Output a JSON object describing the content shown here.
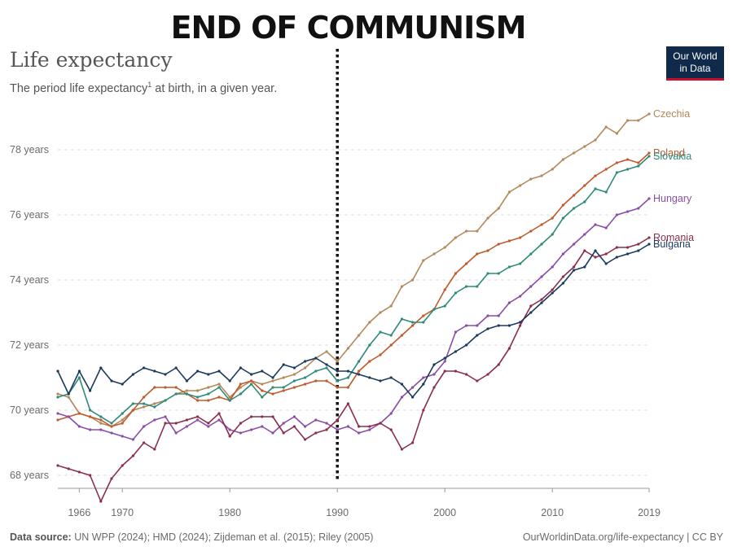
{
  "banner": "END OF COMMUNISM",
  "logo": {
    "line1": "Our World",
    "line2": "in Data"
  },
  "footer": {
    "source_label": "Data source:",
    "source_text": " UN WPP (2024); HMD (2024); Zijdeman et al. (2015); Riley (2005)",
    "credit": "OurWorldinData.org/life-expectancy | CC BY"
  },
  "chart_data": {
    "type": "line",
    "title": "Life expectancy",
    "subtitle_pre": "The period life expectancy",
    "subtitle_sup": "1",
    "subtitle_post": " at birth, in a given year.",
    "xlabel": "",
    "ylabel": "",
    "xlim": [
      1964,
      2019
    ],
    "ylim": [
      67.6,
      79.6
    ],
    "grid": true,
    "x_ticks": [
      1966,
      1970,
      1980,
      1990,
      2000,
      2010,
      2019
    ],
    "y_ticks": [
      68,
      70,
      72,
      74,
      76,
      78
    ],
    "y_tick_labels": [
      "68 years",
      "70 years",
      "72 years",
      "74 years",
      "76 years",
      "78 years"
    ],
    "marker_line": {
      "x": 1990,
      "style": "dotted",
      "color": "#111111"
    },
    "x": [
      1964,
      1965,
      1966,
      1967,
      1968,
      1969,
      1970,
      1971,
      1972,
      1973,
      1974,
      1975,
      1976,
      1977,
      1978,
      1979,
      1980,
      1981,
      1982,
      1983,
      1984,
      1985,
      1986,
      1987,
      1988,
      1989,
      1990,
      1991,
      1992,
      1993,
      1994,
      1995,
      1996,
      1997,
      1998,
      1999,
      2000,
      2001,
      2002,
      2003,
      2004,
      2005,
      2006,
      2007,
      2008,
      2009,
      2010,
      2011,
      2012,
      2013,
      2014,
      2015,
      2016,
      2017,
      2018,
      2019
    ],
    "series": [
      {
        "name": "Czechia",
        "color": "#b3885a",
        "values": [
          70.5,
          70.4,
          69.9,
          69.8,
          69.6,
          69.5,
          69.7,
          70.0,
          70.1,
          70.2,
          70.3,
          70.5,
          70.6,
          70.6,
          70.7,
          70.8,
          70.4,
          70.7,
          70.9,
          70.8,
          70.9,
          71.0,
          71.1,
          71.3,
          71.6,
          71.8,
          71.5,
          71.9,
          72.3,
          72.7,
          73.0,
          73.2,
          73.8,
          74.0,
          74.6,
          74.8,
          75.0,
          75.3,
          75.5,
          75.5,
          75.9,
          76.2,
          76.7,
          76.9,
          77.1,
          77.2,
          77.4,
          77.7,
          77.9,
          78.1,
          78.3,
          78.7,
          78.5,
          78.9,
          78.9,
          79.1
        ]
      },
      {
        "name": "Poland",
        "color": "#c05a2c",
        "values": [
          69.7,
          69.8,
          69.9,
          69.8,
          69.7,
          69.5,
          69.6,
          70.0,
          70.4,
          70.7,
          70.7,
          70.7,
          70.5,
          70.3,
          70.3,
          70.4,
          70.3,
          70.8,
          70.9,
          70.6,
          70.5,
          70.6,
          70.7,
          70.8,
          70.9,
          70.9,
          70.7,
          70.7,
          71.2,
          71.5,
          71.7,
          72.0,
          72.3,
          72.6,
          72.9,
          73.1,
          73.7,
          74.2,
          74.5,
          74.8,
          74.9,
          75.1,
          75.2,
          75.3,
          75.5,
          75.7,
          75.9,
          76.3,
          76.6,
          76.9,
          77.2,
          77.4,
          77.6,
          77.7,
          77.6,
          77.9
        ]
      },
      {
        "name": "Slovakia",
        "color": "#2e8b7a",
        "values": [
          70.4,
          70.5,
          71.0,
          70.0,
          69.8,
          69.6,
          69.9,
          70.2,
          70.2,
          70.1,
          70.3,
          70.5,
          70.5,
          70.4,
          70.5,
          70.7,
          70.3,
          70.5,
          70.8,
          70.4,
          70.7,
          70.7,
          70.9,
          71.0,
          71.2,
          71.3,
          70.9,
          71.0,
          71.5,
          72.0,
          72.4,
          72.3,
          72.8,
          72.7,
          72.7,
          73.1,
          73.2,
          73.6,
          73.8,
          73.8,
          74.2,
          74.2,
          74.4,
          74.5,
          74.8,
          75.1,
          75.4,
          75.9,
          76.2,
          76.4,
          76.8,
          76.7,
          77.3,
          77.4,
          77.5,
          77.8
        ]
      },
      {
        "name": "Hungary",
        "color": "#8a4da6",
        "values": [
          69.9,
          69.8,
          69.5,
          69.4,
          69.4,
          69.3,
          69.2,
          69.1,
          69.5,
          69.7,
          69.8,
          69.3,
          69.5,
          69.7,
          69.5,
          69.7,
          69.4,
          69.3,
          69.4,
          69.5,
          69.3,
          69.6,
          69.8,
          69.5,
          69.7,
          69.6,
          69.4,
          69.5,
          69.3,
          69.4,
          69.6,
          69.9,
          70.4,
          70.7,
          71.0,
          71.1,
          71.5,
          72.4,
          72.6,
          72.6,
          72.9,
          72.9,
          73.3,
          73.5,
          73.8,
          74.1,
          74.4,
          74.8,
          75.1,
          75.4,
          75.7,
          75.6,
          76.0,
          76.1,
          76.2,
          76.5
        ]
      },
      {
        "name": "Romania",
        "color": "#8a2f4a",
        "values": [
          68.3,
          68.2,
          68.1,
          68.0,
          67.2,
          67.9,
          68.3,
          68.6,
          69.0,
          68.8,
          69.6,
          69.6,
          69.7,
          69.8,
          69.6,
          69.9,
          69.2,
          69.6,
          69.8,
          69.8,
          69.8,
          69.3,
          69.5,
          69.1,
          69.3,
          69.4,
          69.7,
          70.2,
          69.5,
          69.5,
          69.6,
          69.4,
          68.8,
          69.0,
          70.0,
          70.7,
          71.2,
          71.2,
          71.1,
          70.9,
          71.1,
          71.4,
          71.9,
          72.6,
          73.2,
          73.4,
          73.7,
          74.1,
          74.4,
          74.9,
          74.7,
          74.8,
          75.0,
          75.0,
          75.1,
          75.3
        ]
      },
      {
        "name": "Bulgaria",
        "color": "#1c3a5e",
        "values": [
          71.2,
          70.5,
          71.2,
          70.6,
          71.3,
          70.9,
          70.8,
          71.1,
          71.3,
          71.2,
          71.1,
          71.3,
          70.9,
          71.2,
          71.1,
          71.2,
          70.9,
          71.3,
          71.1,
          71.2,
          71.0,
          71.4,
          71.3,
          71.5,
          71.6,
          71.4,
          71.2,
          71.2,
          71.1,
          71.0,
          70.9,
          71.0,
          70.8,
          70.4,
          70.8,
          71.4,
          71.6,
          71.8,
          72.0,
          72.3,
          72.5,
          72.6,
          72.6,
          72.7,
          73.0,
          73.3,
          73.6,
          73.9,
          74.3,
          74.4,
          74.9,
          74.5,
          74.7,
          74.8,
          74.9,
          75.1
        ]
      }
    ]
  }
}
